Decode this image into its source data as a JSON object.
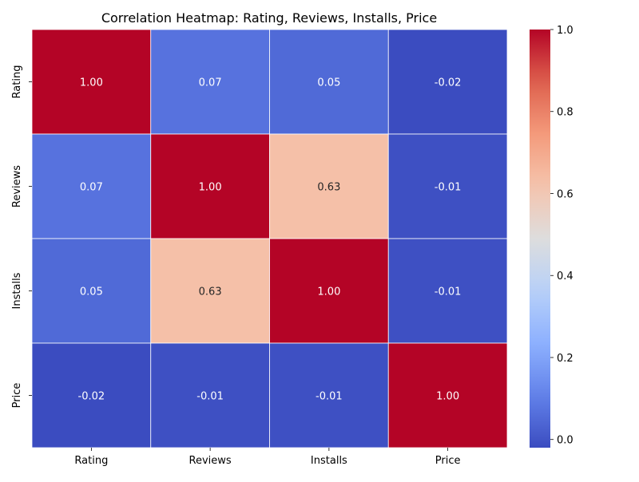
{
  "chart_data": {
    "type": "heatmap",
    "title": "Correlation Heatmap: Rating, Reviews, Installs, Price",
    "rows": [
      "Rating",
      "Reviews",
      "Installs",
      "Price"
    ],
    "columns": [
      "Rating",
      "Reviews",
      "Installs",
      "Price"
    ],
    "values": [
      [
        1.0,
        0.07,
        0.05,
        -0.02
      ],
      [
        0.07,
        1.0,
        0.63,
        -0.01
      ],
      [
        0.05,
        0.63,
        1.0,
        -0.01
      ],
      [
        -0.02,
        -0.01,
        -0.01,
        1.0
      ]
    ],
    "value_format": "2 decimals",
    "colormap": "coolwarm",
    "colorbar": {
      "range": [
        -0.02,
        1.0
      ],
      "ticks": [
        "0.0",
        "0.2",
        "0.4",
        "0.6",
        "0.8",
        "1.0"
      ]
    },
    "cell_border_color": "#ffffff"
  }
}
